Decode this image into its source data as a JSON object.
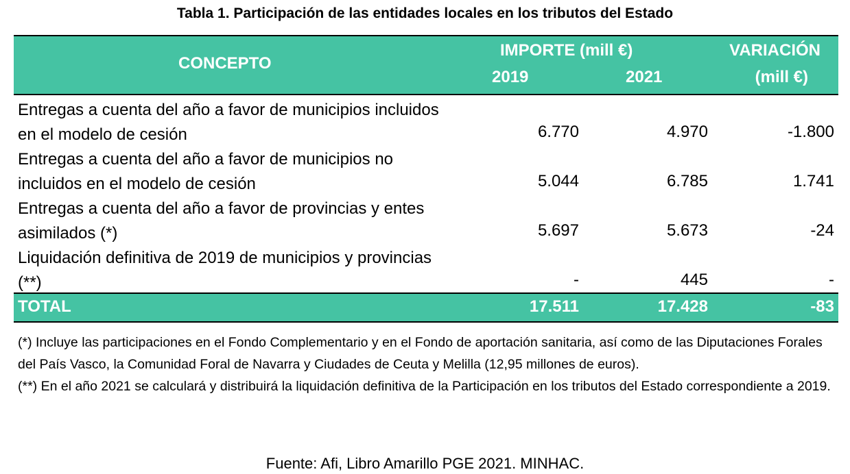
{
  "title": "Tabla 1.  Participación de las entidades locales en los tributos del Estado",
  "header": {
    "concepto": "CONCEPTO",
    "importe": "IMPORTE (mill €)",
    "year1": "2019",
    "year2": "2021",
    "variacion_line1": "VARIACIÓN",
    "variacion_line2": "(mill €)"
  },
  "rows": [
    {
      "concepto": "Entregas a cuenta del año a favor de municipios incluidos en el modelo de cesión",
      "v2019": "6.770",
      "v2021": "4.970",
      "variacion": "-1.800"
    },
    {
      "concepto": "Entregas a cuenta del año a favor de municipios no incluidos en el modelo de cesión",
      "v2019": "5.044",
      "v2021": "6.785",
      "variacion": "1.741"
    },
    {
      "concepto": "Entregas a cuenta del año a favor de provincias y entes asimilados (*)",
      "v2019": "5.697",
      "v2021": "5.673",
      "variacion": "-24"
    },
    {
      "concepto": "Liquidación definitiva de 2019 de municipios y provincias (**)",
      "v2019": "-",
      "v2021": "445",
      "variacion": "-"
    }
  ],
  "total": {
    "label": "TOTAL",
    "v2019": "17.511",
    "v2021": "17.428",
    "variacion": "-83"
  },
  "notes": [
    "(*) Incluye las participaciones en el Fondo Complementario y en el Fondo de aportación sanitaria, así como de las Diputaciones Forales del País Vasco, la Comunidad Foral de Navarra y Ciudades de Ceuta y Melilla (12,95 millones de euros).",
    "(**) En el año 2021 se calculará y distribuirá la liquidación definitiva de la Participación en los tributos del Estado correspondiente a 2019."
  ],
  "source": "Fuente: Afi, Libro Amarillo PGE 2021. MINHAC.",
  "colors": {
    "header_bg": "#45c3a3",
    "header_text": "#ffffff"
  }
}
